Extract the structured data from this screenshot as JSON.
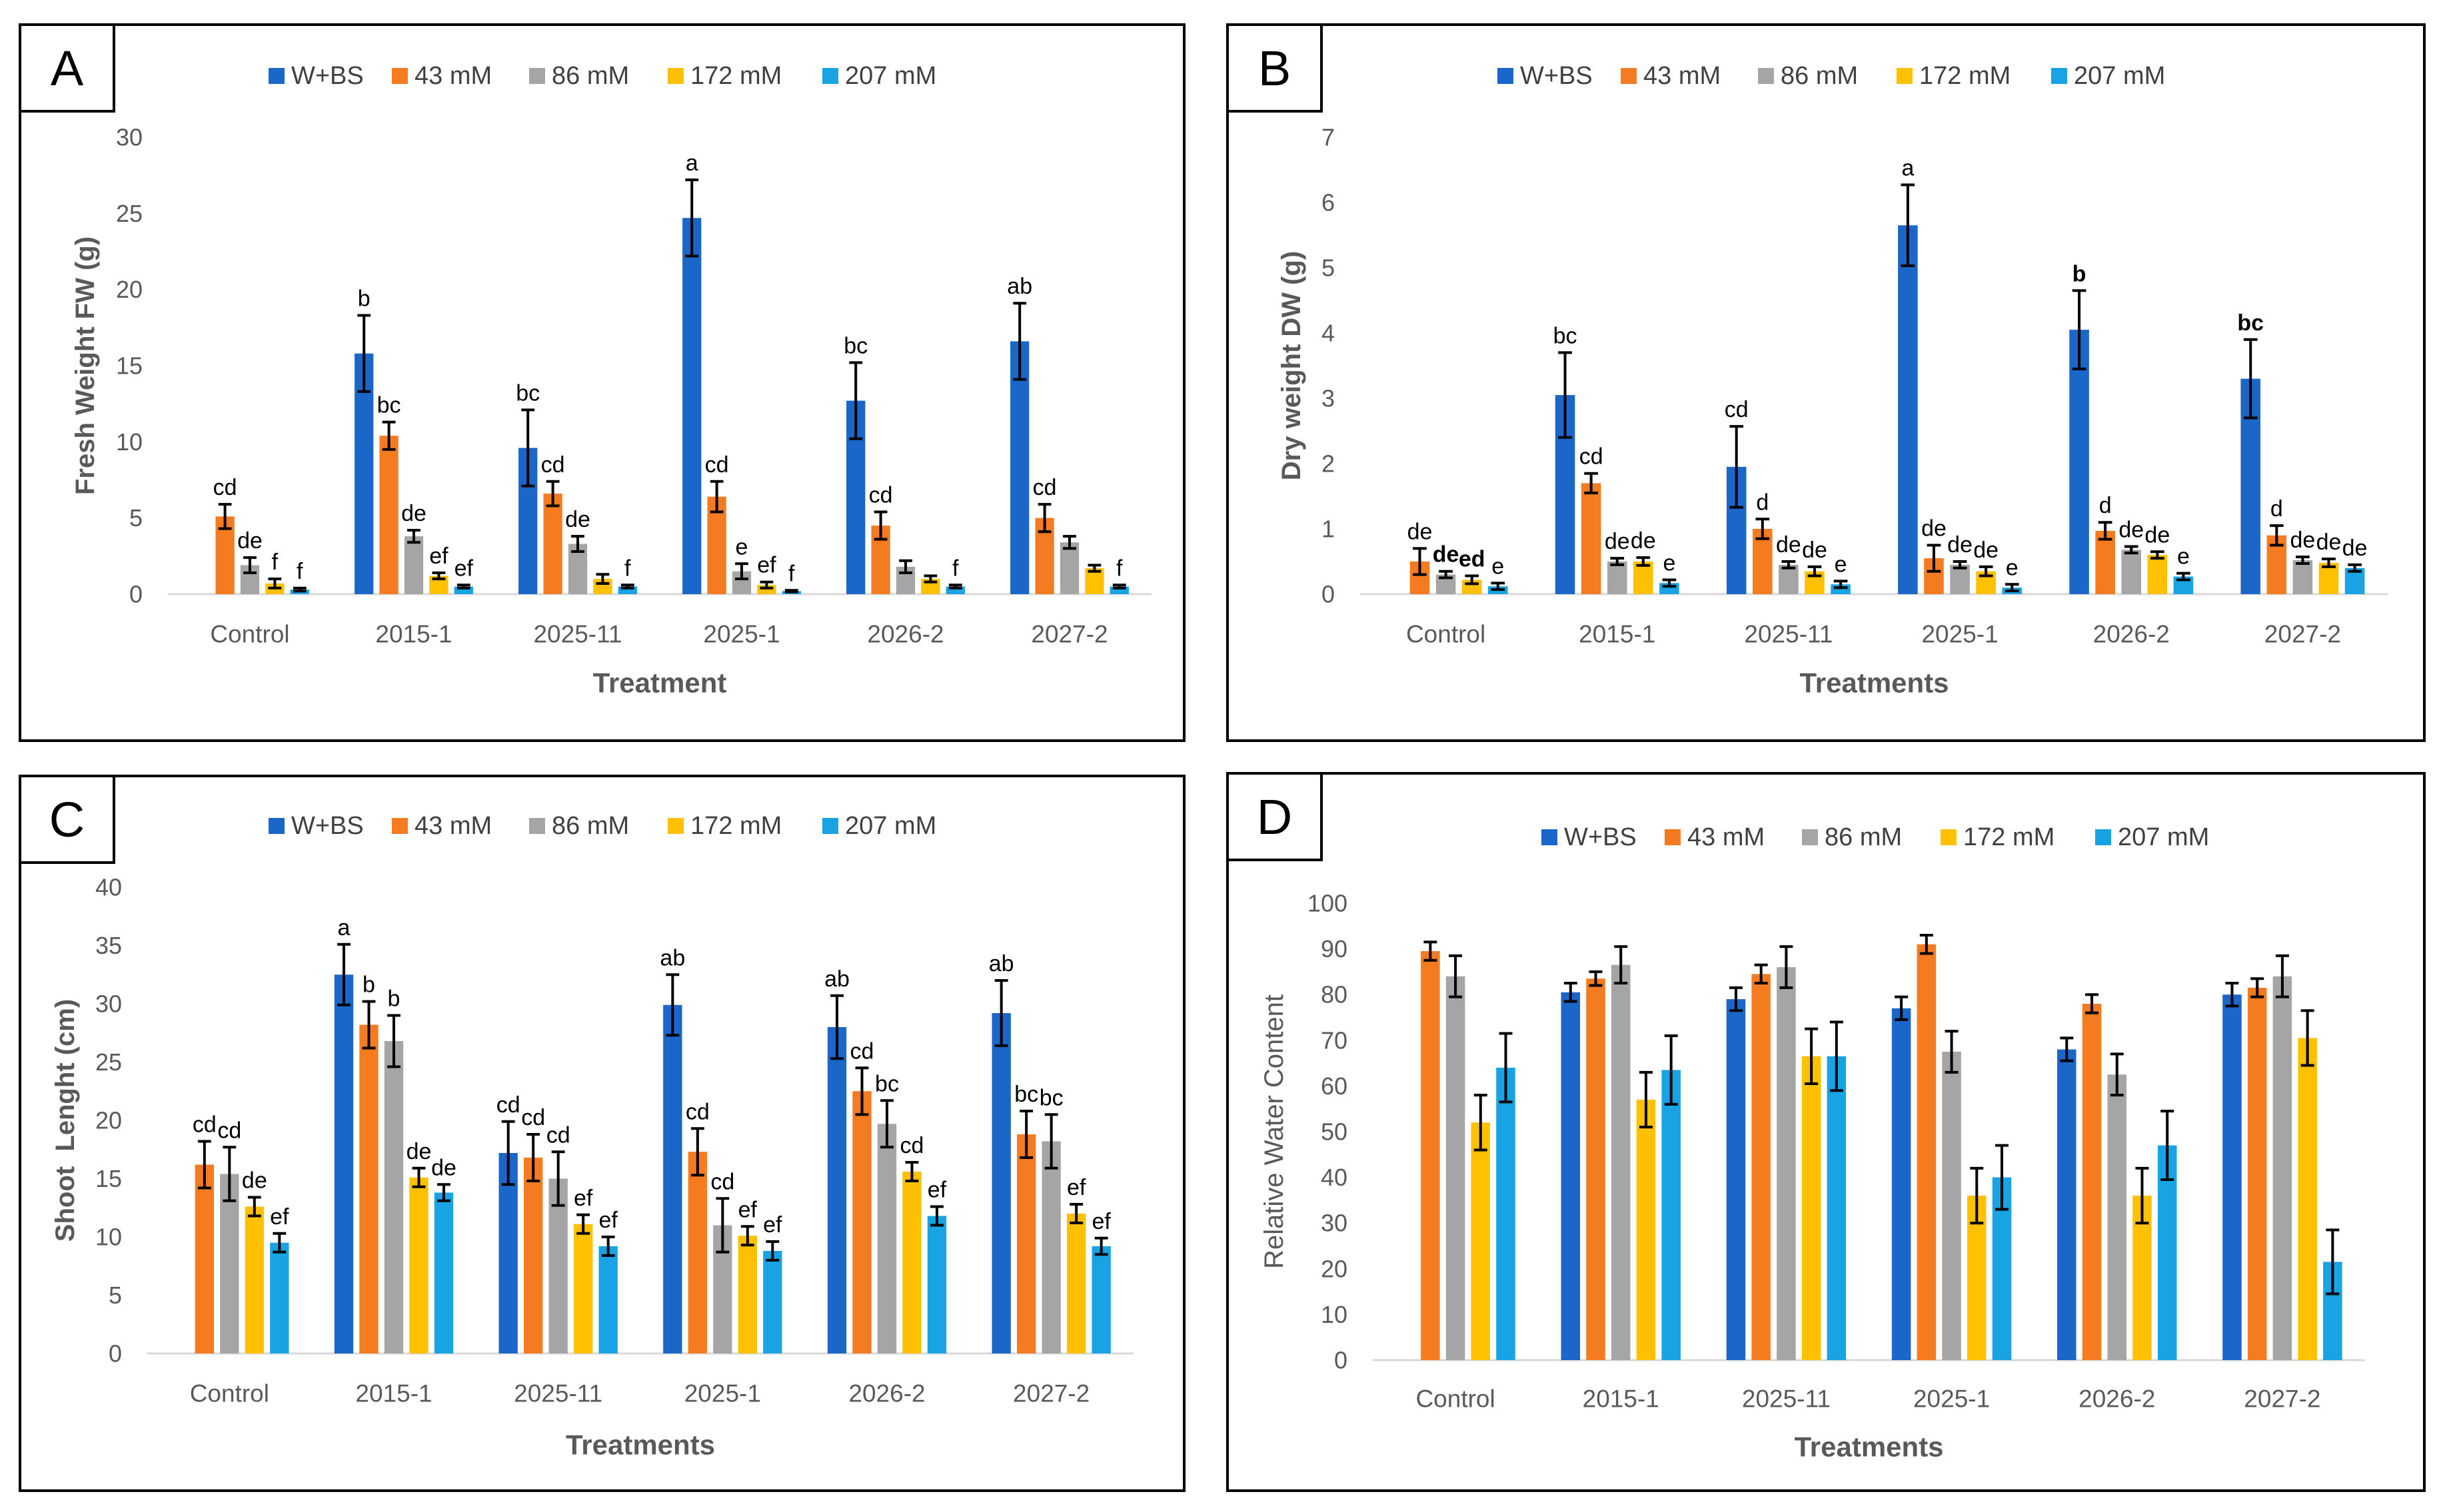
{
  "chart_data": [
    {
      "panel_label": "A",
      "type": "bar",
      "xlabel": "Treatment",
      "ylabel": "Fresh Weight FW (g)",
      "ylabel_bold": true,
      "ylim": [
        0,
        30
      ],
      "yticks": [
        0,
        5,
        10,
        15,
        20,
        25,
        30
      ],
      "categories": [
        "Control",
        "2015-1",
        "2025-11",
        "2025-1",
        "2026-2",
        "2027-2"
      ],
      "series": [
        {
          "name": "W+BS",
          "color": "#1B66C9",
          "values": [
            null,
            15.8,
            9.6,
            24.7,
            12.7,
            16.6
          ],
          "errors": [
            null,
            2.5,
            2.5,
            2.5,
            2.5,
            2.5
          ],
          "letters": [
            "",
            "b",
            "bc",
            "a",
            "bc",
            "ab"
          ]
        },
        {
          "name": "43 mM",
          "color": "#F47B20",
          "values": [
            5.1,
            10.4,
            6.6,
            6.4,
            4.5,
            5.0
          ],
          "errors": [
            0.8,
            0.9,
            0.8,
            1.0,
            0.9,
            0.9
          ],
          "letters": [
            "cd",
            "bc",
            "cd",
            "cd",
            "cd",
            "cd"
          ]
        },
        {
          "name": "86 mM",
          "color": "#A5A5A5",
          "values": [
            1.9,
            3.8,
            3.3,
            1.5,
            1.8,
            3.4
          ],
          "errors": [
            0.5,
            0.4,
            0.5,
            0.5,
            0.4,
            0.4
          ],
          "letters": [
            "de",
            "de",
            "de",
            "e",
            "",
            ""
          ]
        },
        {
          "name": "172 mM",
          "color": "#FFC000",
          "values": [
            0.7,
            1.2,
            1.0,
            0.6,
            1.0,
            1.7
          ],
          "errors": [
            0.3,
            0.2,
            0.3,
            0.2,
            0.2,
            0.2
          ],
          "letters": [
            "f",
            "ef",
            "",
            "ef",
            "",
            ""
          ]
        },
        {
          "name": "207 mM",
          "color": "#18A3E4",
          "values": [
            0.3,
            0.5,
            0.5,
            0.2,
            0.5,
            0.5
          ],
          "errors": [
            0.1,
            0.1,
            0.1,
            0.05,
            0.1,
            0.1
          ],
          "letters": [
            "f",
            "ef",
            "f",
            "f",
            "f",
            "f"
          ]
        }
      ]
    },
    {
      "panel_label": "B",
      "type": "bar",
      "xlabel": "Treatments",
      "ylabel": "Dry weight DW (g)",
      "ylabel_bold": true,
      "ylim": [
        0,
        7
      ],
      "yticks": [
        0,
        1,
        2,
        3,
        4,
        5,
        6,
        7
      ],
      "categories": [
        "Control",
        "2015-1",
        "2025-11",
        "2025-1",
        "2026-2",
        "2027-2"
      ],
      "bold_letters": [
        [
          0,
          2
        ],
        [
          0,
          3
        ],
        [
          4,
          0
        ],
        [
          5,
          0
        ]
      ],
      "series": [
        {
          "name": "W+BS",
          "color": "#1B66C9",
          "values": [
            null,
            3.05,
            1.95,
            5.65,
            4.05,
            3.3
          ],
          "errors": [
            null,
            0.65,
            0.62,
            0.62,
            0.6,
            0.6
          ],
          "letters": [
            "",
            "bc",
            "cd",
            "a",
            "b",
            "bc"
          ]
        },
        {
          "name": "43 mM",
          "color": "#F47B20",
          "values": [
            0.5,
            1.7,
            1.0,
            0.55,
            0.97,
            0.9
          ],
          "errors": [
            0.2,
            0.15,
            0.15,
            0.2,
            0.13,
            0.15
          ],
          "letters": [
            "de",
            "cd",
            "d",
            "de",
            "d",
            "d"
          ]
        },
        {
          "name": "86 mM",
          "color": "#A5A5A5",
          "values": [
            0.3,
            0.5,
            0.45,
            0.45,
            0.68,
            0.52
          ],
          "errors": [
            0.05,
            0.05,
            0.05,
            0.05,
            0.05,
            0.05
          ],
          "letters": [
            "de",
            "de",
            "de",
            "de",
            "de",
            "de"
          ]
        },
        {
          "name": "172 mM",
          "color": "#FFC000",
          "values": [
            0.22,
            0.5,
            0.35,
            0.35,
            0.6,
            0.48
          ],
          "errors": [
            0.06,
            0.06,
            0.07,
            0.07,
            0.05,
            0.06
          ],
          "letters": [
            "ed",
            "de",
            "de",
            "de",
            "de",
            "de"
          ]
        },
        {
          "name": "207 mM",
          "color": "#18A3E4",
          "values": [
            0.12,
            0.17,
            0.15,
            0.1,
            0.27,
            0.4
          ],
          "errors": [
            0.05,
            0.05,
            0.05,
            0.05,
            0.05,
            0.05
          ],
          "letters": [
            "e",
            "e",
            "e",
            "e",
            "e",
            "de"
          ]
        }
      ]
    },
    {
      "panel_label": "C",
      "type": "bar",
      "xlabel": "Treatments",
      "ylabel": "Shoot  Lenght (cm)",
      "ylabel_bold": true,
      "ylim": [
        0,
        40
      ],
      "yticks": [
        0,
        5,
        10,
        15,
        20,
        25,
        30,
        35,
        40
      ],
      "categories": [
        "Control",
        "2015-1",
        "2025-11",
        "2025-1",
        "2026-2",
        "2027-2"
      ],
      "series": [
        {
          "name": "W+BS",
          "color": "#1B66C9",
          "values": [
            null,
            32.5,
            17.2,
            29.9,
            28.0,
            29.2
          ],
          "errors": [
            null,
            2.6,
            2.7,
            2.6,
            2.7,
            2.8
          ],
          "letters": [
            "",
            "a",
            "cd",
            "ab",
            "ab",
            "ab"
          ]
        },
        {
          "name": "43 mM",
          "color": "#F47B20",
          "values": [
            16.2,
            28.2,
            16.8,
            17.3,
            22.5,
            18.8
          ],
          "errors": [
            2.0,
            2.0,
            2.0,
            2.0,
            2.0,
            2.0
          ],
          "letters": [
            "cd",
            "b",
            "cd",
            "cd",
            "cd",
            "bc"
          ]
        },
        {
          "name": "86 mM",
          "color": "#A5A5A5",
          "values": [
            15.4,
            26.8,
            15.0,
            11.0,
            19.7,
            18.2
          ],
          "errors": [
            2.3,
            2.2,
            2.3,
            2.3,
            2.0,
            2.3
          ],
          "letters": [
            "cd",
            "b",
            "cd",
            "cd",
            "bc",
            "bc"
          ]
        },
        {
          "name": "172 mM",
          "color": "#FFC000",
          "values": [
            12.6,
            15.1,
            11.1,
            10.1,
            15.6,
            12.0
          ],
          "errors": [
            0.8,
            0.8,
            0.8,
            0.8,
            0.8,
            0.8
          ],
          "letters": [
            "de",
            "de",
            "ef",
            "ef",
            "cd",
            "ef"
          ]
        },
        {
          "name": "207 mM",
          "color": "#18A3E4",
          "values": [
            9.5,
            13.8,
            9.2,
            8.8,
            11.8,
            9.2
          ],
          "errors": [
            0.8,
            0.7,
            0.8,
            0.8,
            0.8,
            0.7
          ],
          "letters": [
            "ef",
            "de",
            "ef",
            "ef",
            "ef",
            "ef"
          ]
        }
      ]
    },
    {
      "panel_label": "D",
      "type": "bar",
      "xlabel": "Treatments",
      "ylabel": "Relative Water Content",
      "ylabel_bold": false,
      "ylim": [
        0,
        100
      ],
      "yticks": [
        0,
        10,
        20,
        30,
        40,
        50,
        60,
        70,
        80,
        90,
        100
      ],
      "categories": [
        "Control",
        "2015-1",
        "2025-11",
        "2025-1",
        "2026-2",
        "2027-2"
      ],
      "series": [
        {
          "name": "W+BS",
          "color": "#1B66C9",
          "values": [
            null,
            80.5,
            79,
            77,
            68,
            80
          ],
          "errors": [
            null,
            2,
            2.5,
            2.5,
            2.5,
            2.5
          ]
        },
        {
          "name": "43 mM",
          "color": "#F47B20",
          "values": [
            89.5,
            83.5,
            84.5,
            91,
            78,
            81.5
          ],
          "errors": [
            2,
            1.5,
            2,
            2,
            2,
            2
          ]
        },
        {
          "name": "86 mM",
          "color": "#A5A5A5",
          "values": [
            84,
            86.5,
            86,
            67.5,
            62.5,
            84
          ],
          "errors": [
            4.5,
            4,
            4.5,
            4.5,
            4.5,
            4.5
          ]
        },
        {
          "name": "172 mM",
          "color": "#FFC000",
          "values": [
            52,
            57,
            66.5,
            36,
            36,
            70.5
          ],
          "errors": [
            6,
            6,
            6,
            6,
            6,
            6
          ]
        },
        {
          "name": "207 mM",
          "color": "#18A3E4",
          "values": [
            64,
            63.5,
            66.5,
            40,
            47,
            21.5
          ],
          "errors": [
            7.5,
            7.5,
            7.5,
            7,
            7.5,
            7
          ]
        }
      ]
    }
  ]
}
